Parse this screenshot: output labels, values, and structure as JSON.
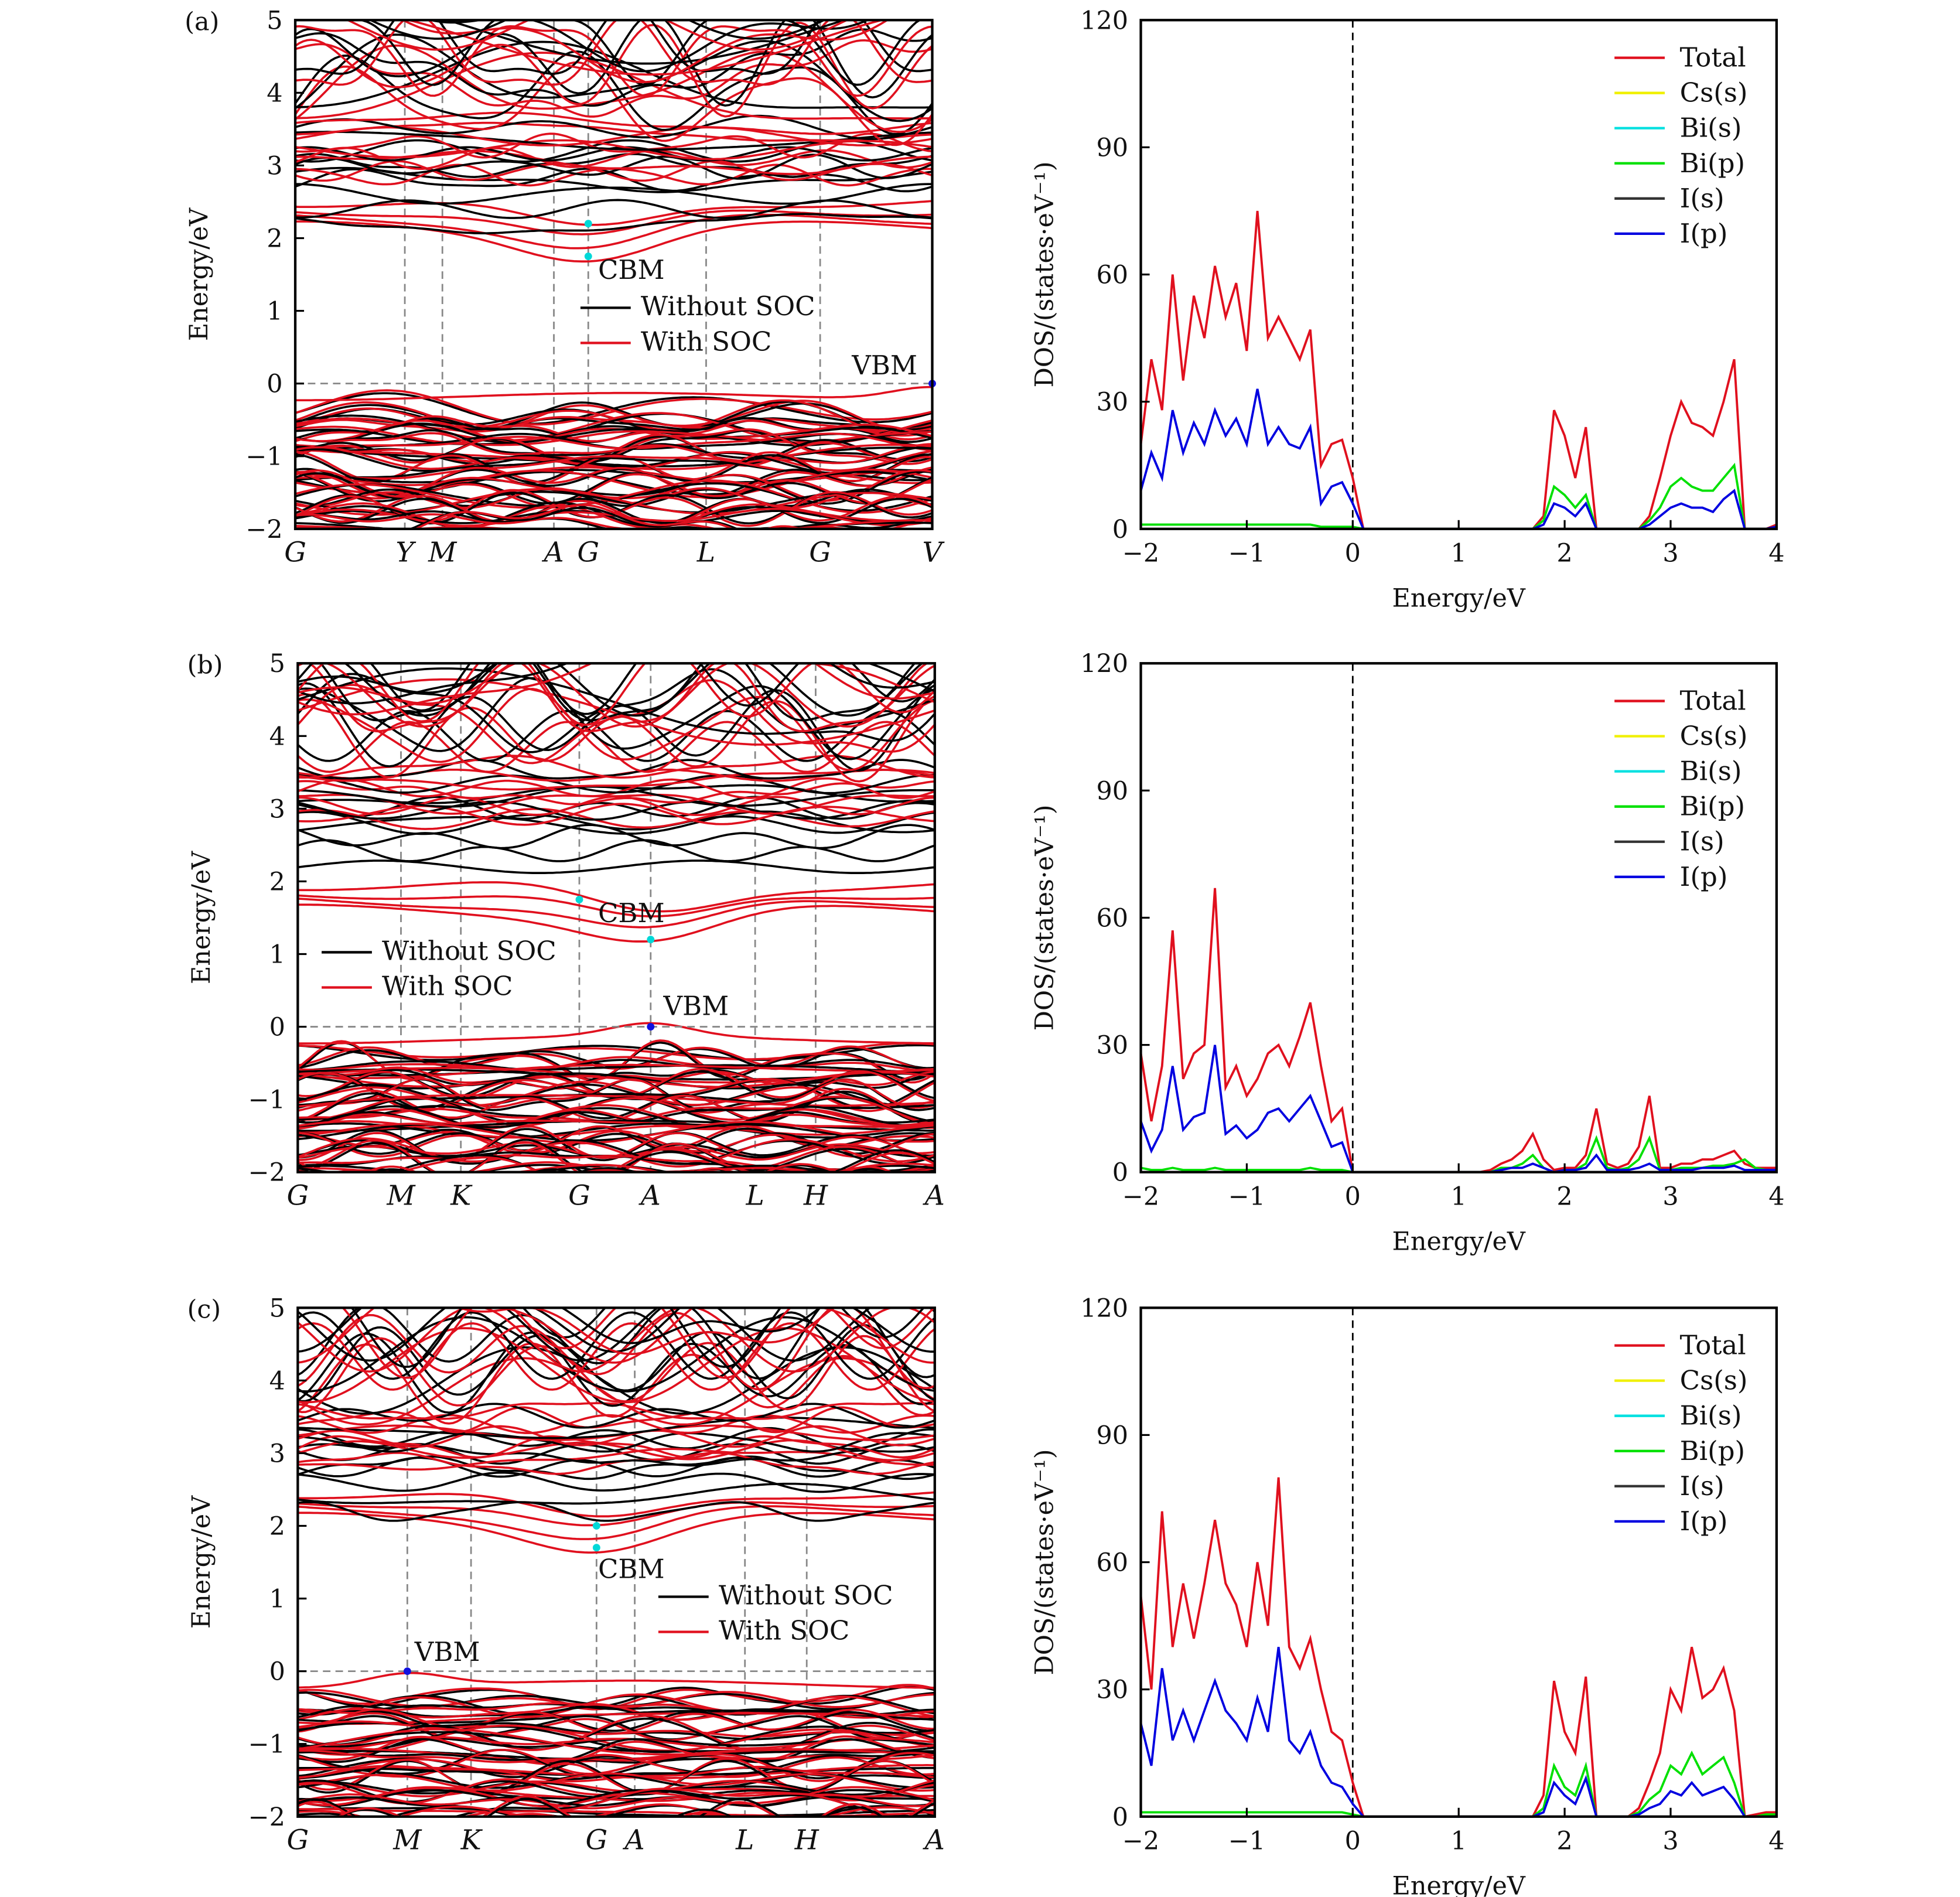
{
  "chart_data": [
    {
      "type": "line",
      "panel_label": "(a)",
      "ylabel": "Energy/eV",
      "ylim": [
        -2,
        5
      ],
      "yticks": [
        "−2",
        "−1",
        "0",
        "1",
        "2",
        "3",
        "4",
        "5"
      ],
      "kpath": [
        "G",
        "Y",
        "M",
        "A",
        "G",
        "L",
        "G",
        "V"
      ],
      "legend": {
        "placement": "center",
        "entries": [
          {
            "name": "Without SOC",
            "color": "#000000"
          },
          {
            "name": "With SOC",
            "color": "#e0101e"
          }
        ]
      },
      "fermi_level": 0,
      "markers": [
        {
          "label": "CBM",
          "kpoint": "G",
          "k_index": 4,
          "energy": 1.75,
          "color": "#00d8d8"
        },
        {
          "label": "",
          "kpoint": "G",
          "k_index": 4,
          "energy": 2.2,
          "color": "#00d8d8"
        },
        {
          "label": "VBM",
          "kpoint": "V",
          "k_index": 7,
          "energy": 0,
          "color": "#1010e0"
        }
      ]
    },
    {
      "type": "line",
      "xlabel": "Energy/eV",
      "ylabel": "DOS/(states·eV⁻¹)",
      "xlim": [
        -2,
        4
      ],
      "ylim": [
        0,
        120
      ],
      "xticks": [
        "−2",
        "−1",
        "0",
        "1",
        "2",
        "3",
        "4"
      ],
      "yticks": [
        "0",
        "30",
        "60",
        "90",
        "120"
      ],
      "legend": {
        "placement": "top-right",
        "entries": [
          {
            "name": "Total",
            "color": "#e0101e"
          },
          {
            "name": "Cs(s)",
            "color": "#f0f000"
          },
          {
            "name": "Bi(s)",
            "color": "#00e0e0"
          },
          {
            "name": "Bi(p)",
            "color": "#00e000"
          },
          {
            "name": "I(s)",
            "color": "#333333"
          },
          {
            "name": "I(p)",
            "color": "#0000e0"
          }
        ]
      },
      "x": [
        -2.0,
        -1.9,
        -1.8,
        -1.7,
        -1.6,
        -1.5,
        -1.4,
        -1.3,
        -1.2,
        -1.1,
        -1.0,
        -0.9,
        -0.8,
        -0.7,
        -0.6,
        -0.5,
        -0.4,
        -0.3,
        -0.2,
        -0.1,
        0.0,
        0.1,
        0.2,
        0.3,
        0.4,
        0.5,
        0.6,
        0.7,
        0.8,
        0.9,
        1.0,
        1.1,
        1.2,
        1.3,
        1.4,
        1.5,
        1.6,
        1.7,
        1.8,
        1.9,
        2.0,
        2.1,
        2.2,
        2.3,
        2.4,
        2.5,
        2.6,
        2.7,
        2.8,
        2.9,
        3.0,
        3.1,
        3.2,
        3.3,
        3.4,
        3.5,
        3.6,
        3.7,
        3.8,
        3.9,
        4.0
      ],
      "series": [
        {
          "name": "Total",
          "values": [
            20,
            40,
            28,
            60,
            35,
            55,
            45,
            62,
            50,
            58,
            42,
            75,
            45,
            50,
            45,
            40,
            47,
            15,
            20,
            21,
            12,
            0,
            0,
            0,
            0,
            0,
            0,
            0,
            0,
            0,
            0,
            0,
            0,
            0,
            0,
            0,
            0,
            0,
            3,
            28,
            22,
            12,
            24,
            0,
            0,
            0,
            0,
            0,
            3,
            12,
            22,
            30,
            25,
            24,
            22,
            30,
            40,
            0,
            0,
            0,
            1
          ]
        },
        {
          "name": "Bi(p)",
          "values": [
            1,
            1,
            1,
            1,
            1,
            1,
            1,
            1,
            1,
            1,
            1,
            1,
            1,
            1,
            1,
            1,
            1,
            0.5,
            0.5,
            0.5,
            0.5,
            0,
            0,
            0,
            0,
            0,
            0,
            0,
            0,
            0,
            0,
            0,
            0,
            0,
            0,
            0,
            0,
            0,
            2,
            10,
            8,
            5,
            8,
            0,
            0,
            0,
            0,
            0,
            2,
            5,
            10,
            12,
            10,
            9,
            9,
            12,
            15,
            0,
            0,
            0,
            0.5
          ]
        },
        {
          "name": "I(p)",
          "values": [
            9,
            18,
            12,
            28,
            18,
            25,
            20,
            28,
            22,
            26,
            20,
            33,
            20,
            24,
            20,
            19,
            24,
            6,
            10,
            11,
            6,
            0,
            0,
            0,
            0,
            0,
            0,
            0,
            0,
            0,
            0,
            0,
            0,
            0,
            0,
            0,
            0,
            0,
            1,
            6,
            5,
            3,
            6,
            0,
            0,
            0,
            0,
            0,
            1,
            3,
            5,
            6,
            5,
            5,
            4,
            7,
            9,
            0,
            0,
            0,
            0.5
          ]
        }
      ]
    },
    {
      "type": "line",
      "panel_label": "(b)",
      "ylabel": "Energy/eV",
      "ylim": [
        -2,
        5
      ],
      "yticks": [
        "−2",
        "−1",
        "0",
        "1",
        "2",
        "3",
        "4",
        "5"
      ],
      "kpath": [
        "G",
        "M",
        "K",
        "G",
        "A",
        "L",
        "H",
        "A"
      ],
      "legend": {
        "placement": "left",
        "entries": [
          {
            "name": "Without SOC",
            "color": "#000000"
          },
          {
            "name": "With SOC",
            "color": "#e0101e"
          }
        ]
      },
      "fermi_level": 0,
      "markers": [
        {
          "label": "CBM",
          "kpoint": "A",
          "k_index": 4,
          "energy": 1.2,
          "color": "#00d8d8"
        },
        {
          "label": "",
          "kpoint": "G",
          "k_index": 3,
          "energy": 1.75,
          "color": "#00d8d8"
        },
        {
          "label": "VBM",
          "kpoint": "A",
          "k_index": 4,
          "energy": 0,
          "color": "#1010e0"
        }
      ]
    },
    {
      "type": "line",
      "xlabel": "Energy/eV",
      "ylabel": "DOS/(states·eV⁻¹)",
      "xlim": [
        -2,
        4
      ],
      "ylim": [
        0,
        120
      ],
      "xticks": [
        "−2",
        "−1",
        "0",
        "1",
        "2",
        "3",
        "4"
      ],
      "yticks": [
        "0",
        "30",
        "60",
        "90",
        "120"
      ],
      "legend": {
        "placement": "top-right",
        "entries": [
          {
            "name": "Total",
            "color": "#e0101e"
          },
          {
            "name": "Cs(s)",
            "color": "#f0f000"
          },
          {
            "name": "Bi(s)",
            "color": "#00e0e0"
          },
          {
            "name": "Bi(p)",
            "color": "#00e000"
          },
          {
            "name": "I(s)",
            "color": "#333333"
          },
          {
            "name": "I(p)",
            "color": "#0000e0"
          }
        ]
      },
      "x": [
        -2.0,
        -1.9,
        -1.8,
        -1.7,
        -1.6,
        -1.5,
        -1.4,
        -1.3,
        -1.2,
        -1.1,
        -1.0,
        -0.9,
        -0.8,
        -0.7,
        -0.6,
        -0.5,
        -0.4,
        -0.3,
        -0.2,
        -0.1,
        0.0,
        0.1,
        0.2,
        0.3,
        0.4,
        0.5,
        0.6,
        0.7,
        0.8,
        0.9,
        1.0,
        1.1,
        1.2,
        1.3,
        1.4,
        1.5,
        1.6,
        1.7,
        1.8,
        1.9,
        2.0,
        2.1,
        2.2,
        2.3,
        2.4,
        2.5,
        2.6,
        2.7,
        2.8,
        2.9,
        3.0,
        3.1,
        3.2,
        3.3,
        3.4,
        3.5,
        3.6,
        3.7,
        3.8,
        3.9,
        4.0
      ],
      "series": [
        {
          "name": "Total",
          "values": [
            28,
            12,
            25,
            57,
            22,
            28,
            30,
            67,
            20,
            25,
            18,
            22,
            28,
            30,
            25,
            32,
            40,
            25,
            12,
            15,
            0,
            0,
            0,
            0,
            0,
            0,
            0,
            0,
            0,
            0,
            0,
            0,
            0,
            0.5,
            2,
            3,
            5,
            9,
            3,
            0.5,
            1,
            1,
            4,
            15,
            2,
            1,
            2,
            6,
            18,
            1,
            1,
            2,
            2,
            3,
            3,
            4,
            5,
            2,
            1,
            1,
            1
          ]
        },
        {
          "name": "Bi(p)",
          "values": [
            1,
            0.5,
            0.5,
            1,
            0.5,
            0.5,
            0.5,
            1,
            0.5,
            0.5,
            0.5,
            0.5,
            0.5,
            0.5,
            0.5,
            0.5,
            1,
            0.5,
            0.5,
            0.5,
            0,
            0,
            0,
            0,
            0,
            0,
            0,
            0,
            0,
            0,
            0,
            0,
            0,
            0,
            1,
            1,
            2,
            4,
            1,
            0,
            0.5,
            0.5,
            2,
            8,
            1,
            0.5,
            1,
            3,
            8,
            0.5,
            0.5,
            1,
            1,
            1,
            1.5,
            1.5,
            2,
            3,
            1,
            0.5,
            0.5
          ]
        },
        {
          "name": "I(p)",
          "values": [
            12,
            5,
            10,
            25,
            10,
            13,
            14,
            30,
            9,
            11,
            8,
            10,
            14,
            15,
            12,
            15,
            18,
            12,
            6,
            7,
            0,
            0,
            0,
            0,
            0,
            0,
            0,
            0,
            0,
            0,
            0,
            0,
            0,
            0,
            0.5,
            1,
            1,
            2,
            1,
            0,
            0.5,
            0.5,
            1,
            4,
            0.5,
            0.5,
            0.5,
            1,
            2,
            0.5,
            0.5,
            0.5,
            0.5,
            1,
            1,
            1,
            1.5,
            0.5,
            0.5,
            0.5,
            0.5
          ]
        }
      ]
    },
    {
      "type": "line",
      "panel_label": "(c)",
      "ylabel": "Energy/eV",
      "ylim": [
        -2,
        5
      ],
      "yticks": [
        "−2",
        "−1",
        "0",
        "1",
        "2",
        "3",
        "4",
        "5"
      ],
      "kpath": [
        "G",
        "M",
        "K",
        "G",
        "A",
        "L",
        "H",
        "A"
      ],
      "legend": {
        "placement": "right",
        "entries": [
          {
            "name": "Without SOC",
            "color": "#000000"
          },
          {
            "name": "With SOC",
            "color": "#e0101e"
          }
        ]
      },
      "fermi_level": 0,
      "markers": [
        {
          "label": "CBM",
          "kpoint": "G",
          "k_index": 3,
          "energy": 1.7,
          "color": "#00d8d8"
        },
        {
          "label": "",
          "kpoint": "G",
          "k_index": 3,
          "energy": 2.0,
          "color": "#00d8d8"
        },
        {
          "label": "VBM",
          "kpoint": "M",
          "k_index": 1,
          "energy": 0,
          "color": "#1010e0"
        }
      ]
    },
    {
      "type": "line",
      "xlabel": "Energy/eV",
      "ylabel": "DOS/(states·eV⁻¹)",
      "xlim": [
        -2,
        4
      ],
      "ylim": [
        0,
        120
      ],
      "xticks": [
        "−2",
        "−1",
        "0",
        "1",
        "2",
        "3",
        "4"
      ],
      "yticks": [
        "0",
        "30",
        "60",
        "90",
        "120"
      ],
      "legend": {
        "placement": "top-right",
        "entries": [
          {
            "name": "Total",
            "color": "#e0101e"
          },
          {
            "name": "Cs(s)",
            "color": "#f0f000"
          },
          {
            "name": "Bi(s)",
            "color": "#00e0e0"
          },
          {
            "name": "Bi(p)",
            "color": "#00e000"
          },
          {
            "name": "I(s)",
            "color": "#333333"
          },
          {
            "name": "I(p)",
            "color": "#0000e0"
          }
        ]
      },
      "x": [
        -2.0,
        -1.9,
        -1.8,
        -1.7,
        -1.6,
        -1.5,
        -1.4,
        -1.3,
        -1.2,
        -1.1,
        -1.0,
        -0.9,
        -0.8,
        -0.7,
        -0.6,
        -0.5,
        -0.4,
        -0.3,
        -0.2,
        -0.1,
        0.0,
        0.1,
        0.2,
        0.3,
        0.4,
        0.5,
        0.6,
        0.7,
        0.8,
        0.9,
        1.0,
        1.1,
        1.2,
        1.3,
        1.4,
        1.5,
        1.6,
        1.7,
        1.8,
        1.9,
        2.0,
        2.1,
        2.2,
        2.3,
        2.4,
        2.5,
        2.6,
        2.7,
        2.8,
        2.9,
        3.0,
        3.1,
        3.2,
        3.3,
        3.4,
        3.5,
        3.6,
        3.7,
        3.8,
        3.9,
        4.0
      ],
      "series": [
        {
          "name": "Total",
          "values": [
            52,
            30,
            72,
            40,
            55,
            42,
            55,
            70,
            55,
            50,
            40,
            60,
            45,
            80,
            40,
            35,
            42,
            30,
            20,
            18,
            8,
            0,
            0,
            0,
            0,
            0,
            0,
            0,
            0,
            0,
            0,
            0,
            0,
            0,
            0,
            0,
            0,
            0,
            5,
            32,
            20,
            15,
            33,
            0,
            0,
            0,
            0,
            2,
            8,
            15,
            30,
            25,
            40,
            28,
            30,
            35,
            25,
            0,
            0.5,
            1,
            1
          ]
        },
        {
          "name": "Bi(p)",
          "values": [
            1,
            1,
            1,
            1,
            1,
            1,
            1,
            1,
            1,
            1,
            1,
            1,
            1,
            1,
            1,
            1,
            1,
            1,
            1,
            1,
            0.5,
            0,
            0,
            0,
            0,
            0,
            0,
            0,
            0,
            0,
            0,
            0,
            0,
            0,
            0,
            0,
            0,
            0,
            2,
            12,
            7,
            5,
            12,
            0,
            0,
            0,
            0,
            1,
            4,
            6,
            12,
            10,
            15,
            10,
            12,
            14,
            8,
            0,
            0,
            0.5,
            0.5
          ]
        },
        {
          "name": "I(p)",
          "values": [
            22,
            12,
            35,
            18,
            25,
            18,
            25,
            32,
            25,
            22,
            18,
            28,
            20,
            40,
            18,
            15,
            20,
            12,
            8,
            7,
            3,
            0,
            0,
            0,
            0,
            0,
            0,
            0,
            0,
            0,
            0,
            0,
            0,
            0,
            0,
            0,
            0,
            0,
            1,
            8,
            5,
            3,
            9,
            0,
            0,
            0,
            0,
            0.5,
            2,
            3,
            6,
            5,
            8,
            5,
            6,
            7,
            4,
            0,
            0,
            0,
            0
          ]
        }
      ]
    }
  ]
}
